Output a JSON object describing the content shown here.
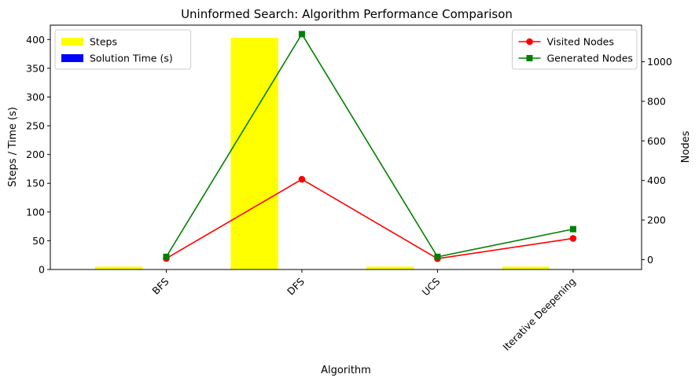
{
  "chart_data": {
    "type": "bar",
    "title": "Uninformed Search: Algorithm Performance Comparison",
    "xlabel": "Algorithm",
    "ylabel": "Steps / Time (s)",
    "y2label": "Nodes",
    "categories": [
      "BFS",
      "DFS",
      "UCS",
      "Iterative Deepening"
    ],
    "ylim": [
      0,
      425
    ],
    "y2lim": [
      -50,
      1185
    ],
    "yticks": [
      0,
      50,
      100,
      150,
      200,
      250,
      300,
      350,
      400
    ],
    "y2ticks": [
      0,
      200,
      400,
      600,
      800,
      1000
    ],
    "bar_series": [
      {
        "name": "Steps",
        "color": "#ffff00",
        "values": [
          5,
          403,
          5,
          5
        ]
      },
      {
        "name": "Solution Time (s)",
        "color": "#0000ff",
        "values": [
          0.0,
          0.02,
          0.0,
          0.01
        ]
      }
    ],
    "line_series": [
      {
        "name": "Visited Nodes",
        "color": "#ff0000",
        "marker": "circle",
        "values": [
          6,
          406,
          5,
          107
        ]
      },
      {
        "name": "Generated Nodes",
        "color": "#008000",
        "marker": "square",
        "values": [
          14,
          1140,
          14,
          154
        ]
      }
    ],
    "legend_left": "top-left",
    "legend_right": "top-right",
    "grid": false
  }
}
